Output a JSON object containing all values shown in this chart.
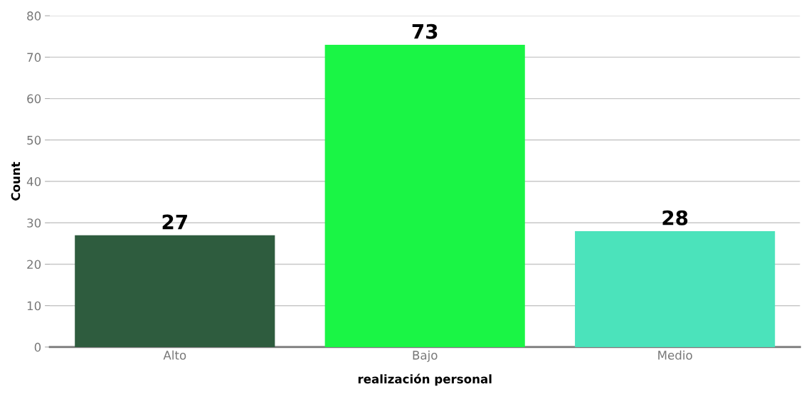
{
  "chart_data": {
    "type": "bar",
    "xlabel": "realización personal",
    "ylabel": "Count",
    "categories": [
      "Alto",
      "Bajo",
      "Medio"
    ],
    "values": [
      27,
      73,
      28
    ],
    "colors": [
      "#2e5c3e",
      "#1af545",
      "#4be3bb"
    ],
    "ylim": [
      0,
      80
    ],
    "yticks": [
      0,
      10,
      20,
      30,
      40,
      50,
      60,
      70,
      80
    ],
    "grid": "y",
    "data_labels": true
  }
}
